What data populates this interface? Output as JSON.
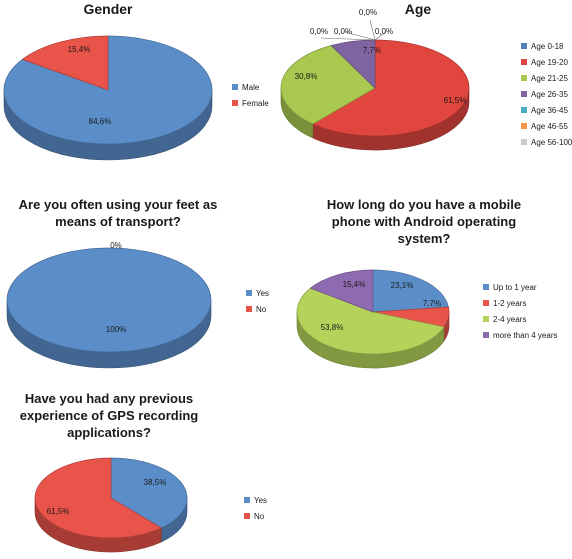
{
  "chart_data": [
    {
      "type": "pie",
      "title": "Gender",
      "categories": [
        "Male",
        "Female"
      ],
      "values": [
        84.6,
        15.4
      ],
      "data_labels": [
        "84,6%",
        "15,4%"
      ],
      "colors": [
        "#5b8ec9",
        "#e8534a"
      ],
      "legend": "right"
    },
    {
      "type": "pie",
      "title": "Age",
      "categories": [
        "Age 0-18",
        "Age 19-20",
        "Age 21-25",
        "Age 26-35",
        "Age 36-45",
        "Age 46-55",
        "Age 56-100"
      ],
      "values": [
        0,
        61.5,
        30.8,
        7.7,
        0,
        0,
        0
      ],
      "data_labels": [
        "0,0%",
        "61,5%",
        "30,8%",
        "7,7%",
        "0,0%",
        "0,0%",
        "0,0%"
      ],
      "colors": [
        "#4f81bd",
        "#e0463e",
        "#a9c84f",
        "#8064a2",
        "#4bacc6",
        "#f79646",
        "#c9c9c9"
      ],
      "legend": "right"
    },
    {
      "type": "pie",
      "title_lines": [
        "Are you often using your feet as",
        "means of transport?"
      ],
      "categories": [
        "Yes",
        "No"
      ],
      "values": [
        100,
        0
      ],
      "data_labels": [
        "100%",
        "0%"
      ],
      "colors": [
        "#5b8ec9",
        "#e8534a"
      ],
      "legend": "right"
    },
    {
      "type": "pie",
      "title_lines": [
        "How long do you have a mobile",
        "phone with Android operating",
        "system?"
      ],
      "categories": [
        "Up to 1 year",
        "1-2 years",
        "2-4 years",
        "more than 4 years"
      ],
      "values": [
        23.1,
        7.7,
        53.8,
        15.4
      ],
      "data_labels": [
        "23,1%",
        "7,7%",
        "53,8%",
        "15,4%"
      ],
      "colors": [
        "#5b8ec9",
        "#e8534a",
        "#b5d35a",
        "#8e6bb0"
      ],
      "legend": "right"
    },
    {
      "type": "pie",
      "title_lines": [
        "Have you had any previous",
        "experience of GPS recording",
        "applications?"
      ],
      "categories": [
        "Yes",
        "No"
      ],
      "values": [
        38.5,
        61.5
      ],
      "data_labels": [
        "38,5%",
        "61,5%"
      ],
      "colors": [
        "#5b8ec9",
        "#e8534a"
      ],
      "legend": "right"
    }
  ]
}
